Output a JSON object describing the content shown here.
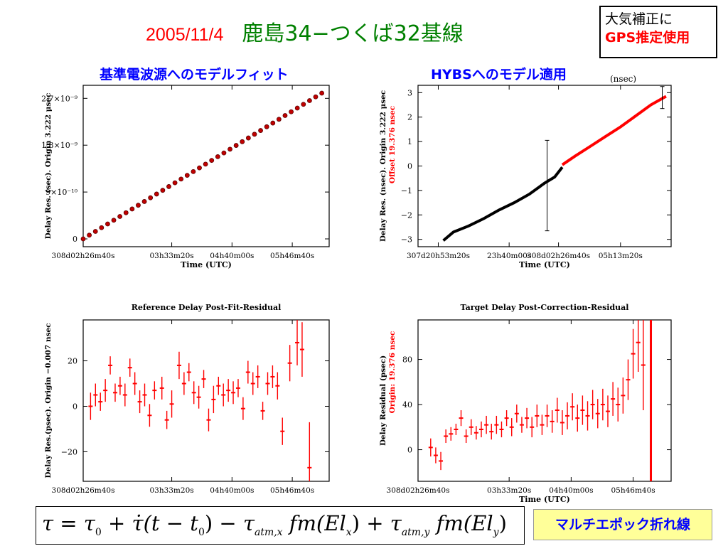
{
  "header": {
    "date": "2005/11/4",
    "baseline": "鹿島34−つくば32基線"
  },
  "note": {
    "line1": "大気補正に",
    "line2": "GPS推定使用"
  },
  "left_heading": "基準電波源へのモデルフィット",
  "right_heading": "HYBSへのモデル適用",
  "right_unit": "(nsec)",
  "break_label": "マルチエポック折れ線",
  "formula": {
    "tau": "τ",
    "eq": "=",
    "tau0": "τ",
    "s0": "0",
    "plus1": "+",
    "taudot": "τ̇",
    "paren_open": "(t",
    "minus1": "−",
    "t0": "t",
    "s0b": "0",
    "paren_close": ")",
    "minus2": "−",
    "tau_x": "τ",
    "sub_x": "atm,x",
    "fm_x": "fm(El",
    "sub_xx": "x",
    "close_x": ")",
    "plus2": "+",
    "tau_y": "τ",
    "sub_y": "atm,y",
    "fm_y": "fm(El",
    "sub_yy": "y",
    "close_y": ")"
  },
  "chart_data": [
    {
      "type": "scatter",
      "title": "",
      "xlabel": "Time (UTC)",
      "ylabel": "Delay Res. (sec). Origin 3.222 μsec",
      "xlim": [
        0,
        1
      ],
      "ylim": [
        -1.5e-10,
        2.95e-09
      ],
      "xticks": [
        {
          "x": 0.0,
          "label": "308d02h26m40s"
        },
        {
          "x": 0.36,
          "label": "03h33m20s"
        },
        {
          "x": 0.605,
          "label": "04h40m00s"
        },
        {
          "x": 0.85,
          "label": "05h46m40s"
        }
      ],
      "yticks": [
        {
          "y": 0,
          "label": "0"
        },
        {
          "y": 9e-10,
          "label": "9×10⁻¹⁰"
        },
        {
          "y": 1.8e-09,
          "label": "1.8×10⁻⁹"
        },
        {
          "y": 2.7e-09,
          "label": "2.7×10⁻⁹"
        }
      ],
      "series": [
        {
          "color": "#800000",
          "marker": "#c00000",
          "x_start": 0.0,
          "x_end": 0.97,
          "y_start": 0,
          "y_end": 2.8e-09,
          "n": 40
        }
      ]
    },
    {
      "type": "line",
      "title": "",
      "xlabel": "Time (UTC)",
      "ylabel": "Delay Res. (nsec). Origin 3.222 μsec",
      "ylabel2": "Offset 19.376 nsec",
      "xlim": [
        0,
        1
      ],
      "ylim": [
        -3.3,
        3.3
      ],
      "xticks": [
        {
          "x": 0.08,
          "label": "307d20h53m20s"
        },
        {
          "x": 0.36,
          "label": "23h40m00s"
        },
        {
          "x": 0.555,
          "label": "308d02h26m40s"
        },
        {
          "x": 0.8,
          "label": "05h13m20s"
        }
      ],
      "yticks": [
        {
          "y": 3,
          "label": "3"
        },
        {
          "y": 2,
          "label": "2"
        },
        {
          "y": 1,
          "label": "1"
        },
        {
          "y": 0,
          "label": "0"
        },
        {
          "y": -1,
          "label": "−1"
        },
        {
          "y": -2,
          "label": "−2"
        },
        {
          "y": -3,
          "label": "−3"
        }
      ],
      "series": [
        {
          "color": "#000000",
          "points": [
            [
              0.1,
              -3.05
            ],
            [
              0.14,
              -2.7
            ],
            [
              0.2,
              -2.45
            ],
            [
              0.26,
              -2.15
            ],
            [
              0.32,
              -1.8
            ],
            [
              0.38,
              -1.5
            ],
            [
              0.44,
              -1.15
            ],
            [
              0.48,
              -0.85
            ],
            [
              0.5,
              -0.7
            ],
            [
              0.54,
              -0.45
            ],
            [
              0.57,
              -0.05
            ]
          ]
        },
        {
          "color": "#ff0000",
          "points": [
            [
              0.57,
              0.05
            ],
            [
              0.62,
              0.4
            ],
            [
              0.68,
              0.8
            ],
            [
              0.74,
              1.2
            ],
            [
              0.8,
              1.6
            ],
            [
              0.86,
              2.05
            ],
            [
              0.92,
              2.5
            ],
            [
              0.98,
              2.85
            ]
          ]
        }
      ],
      "errorbars": [
        {
          "x": 0.51,
          "y": -0.8,
          "err": 1.85
        },
        {
          "x": 0.965,
          "y": 2.8,
          "err": 0.45
        }
      ]
    },
    {
      "type": "scatter",
      "title": "Reference Delay Post-Fit-Residual",
      "xlabel": "",
      "ylabel": "Delay Res.(psec). Origin −0.007 nsec",
      "xlim": [
        0,
        1
      ],
      "ylim": [
        -33,
        38
      ],
      "xticks": [
        {
          "x": 0.0,
          "label": "308d02h26m40s"
        },
        {
          "x": 0.36,
          "label": "03h33m20s"
        },
        {
          "x": 0.605,
          "label": "04h40m00s"
        },
        {
          "x": 0.85,
          "label": "05h46m40s"
        }
      ],
      "yticks": [
        {
          "y": 20,
          "label": "20"
        },
        {
          "y": 0,
          "label": "0"
        },
        {
          "y": -20,
          "label": "−20"
        }
      ],
      "series": [
        {
          "color": "#ff0000"
        }
      ],
      "points": [
        [
          0.03,
          0,
          6
        ],
        [
          0.05,
          5,
          5
        ],
        [
          0.07,
          2,
          4
        ],
        [
          0.09,
          7,
          5
        ],
        [
          0.11,
          18,
          4
        ],
        [
          0.13,
          6,
          4
        ],
        [
          0.15,
          9,
          4
        ],
        [
          0.17,
          5,
          5
        ],
        [
          0.19,
          17,
          4
        ],
        [
          0.21,
          10,
          5
        ],
        [
          0.23,
          2,
          5
        ],
        [
          0.25,
          5,
          5
        ],
        [
          0.27,
          -4,
          5
        ],
        [
          0.29,
          7,
          4
        ],
        [
          0.32,
          8,
          5
        ],
        [
          0.34,
          -6,
          4
        ],
        [
          0.36,
          1,
          6
        ],
        [
          0.39,
          18,
          6
        ],
        [
          0.41,
          10,
          5
        ],
        [
          0.43,
          15,
          4
        ],
        [
          0.45,
          6,
          5
        ],
        [
          0.47,
          4,
          5
        ],
        [
          0.49,
          12,
          4
        ],
        [
          0.51,
          -6,
          5
        ],
        [
          0.53,
          3,
          6
        ],
        [
          0.55,
          9,
          4
        ],
        [
          0.57,
          5,
          5
        ],
        [
          0.59,
          7,
          5
        ],
        [
          0.61,
          6,
          5
        ],
        [
          0.63,
          8,
          4
        ],
        [
          0.65,
          -1,
          5
        ],
        [
          0.67,
          15,
          5
        ],
        [
          0.69,
          10,
          5
        ],
        [
          0.71,
          13,
          5
        ],
        [
          0.73,
          -2,
          4
        ],
        [
          0.75,
          10,
          5
        ],
        [
          0.77,
          13,
          5
        ],
        [
          0.79,
          9,
          6
        ],
        [
          0.81,
          -11,
          6
        ],
        [
          0.84,
          19,
          8
        ],
        [
          0.87,
          28,
          10
        ],
        [
          0.89,
          25,
          12
        ],
        [
          0.92,
          -27,
          20
        ]
      ]
    },
    {
      "type": "scatter",
      "title": "Target Delay Post-Correction-Residual",
      "xlabel": "Time (UTC)",
      "ylabel": "Delay Residual (psec)",
      "ylabel2": "Origin: 19.376 nsec",
      "xlim": [
        0,
        1
      ],
      "ylim": [
        -28,
        115
      ],
      "xticks": [
        {
          "x": 0.0,
          "label": "308d02h26m40s"
        },
        {
          "x": 0.36,
          "label": "03h33m20s"
        },
        {
          "x": 0.605,
          "label": "04h40m00s"
        },
        {
          "x": 0.85,
          "label": "05h46m40s"
        }
      ],
      "yticks": [
        {
          "y": 80,
          "label": "80"
        },
        {
          "y": 40,
          "label": "40"
        },
        {
          "y": 0,
          "label": "0"
        }
      ],
      "series": [
        {
          "color": "#ff0000"
        }
      ],
      "points": [
        [
          0.05,
          2,
          8
        ],
        [
          0.07,
          -5,
          7
        ],
        [
          0.09,
          -10,
          8
        ],
        [
          0.11,
          12,
          6
        ],
        [
          0.13,
          14,
          6
        ],
        [
          0.15,
          18,
          5
        ],
        [
          0.17,
          28,
          7
        ],
        [
          0.19,
          12,
          6
        ],
        [
          0.21,
          20,
          7
        ],
        [
          0.23,
          15,
          6
        ],
        [
          0.25,
          18,
          7
        ],
        [
          0.27,
          22,
          8
        ],
        [
          0.29,
          16,
          7
        ],
        [
          0.31,
          22,
          8
        ],
        [
          0.33,
          18,
          7
        ],
        [
          0.35,
          28,
          7
        ],
        [
          0.37,
          20,
          8
        ],
        [
          0.39,
          32,
          8
        ],
        [
          0.41,
          22,
          7
        ],
        [
          0.43,
          28,
          9
        ],
        [
          0.45,
          20,
          9
        ],
        [
          0.47,
          30,
          10
        ],
        [
          0.49,
          22,
          9
        ],
        [
          0.51,
          30,
          10
        ],
        [
          0.53,
          25,
          10
        ],
        [
          0.55,
          35,
          11
        ],
        [
          0.57,
          24,
          11
        ],
        [
          0.59,
          30,
          12
        ],
        [
          0.61,
          38,
          12
        ],
        [
          0.63,
          28,
          12
        ],
        [
          0.65,
          35,
          13
        ],
        [
          0.67,
          30,
          13
        ],
        [
          0.69,
          40,
          13
        ],
        [
          0.71,
          32,
          13
        ],
        [
          0.73,
          40,
          14
        ],
        [
          0.75,
          34,
          14
        ],
        [
          0.77,
          45,
          15
        ],
        [
          0.79,
          40,
          15
        ],
        [
          0.81,
          48,
          16
        ],
        [
          0.83,
          62,
          18
        ],
        [
          0.85,
          85,
          22
        ],
        [
          0.87,
          95,
          26
        ],
        [
          0.89,
          75,
          40
        ]
      ]
    }
  ]
}
